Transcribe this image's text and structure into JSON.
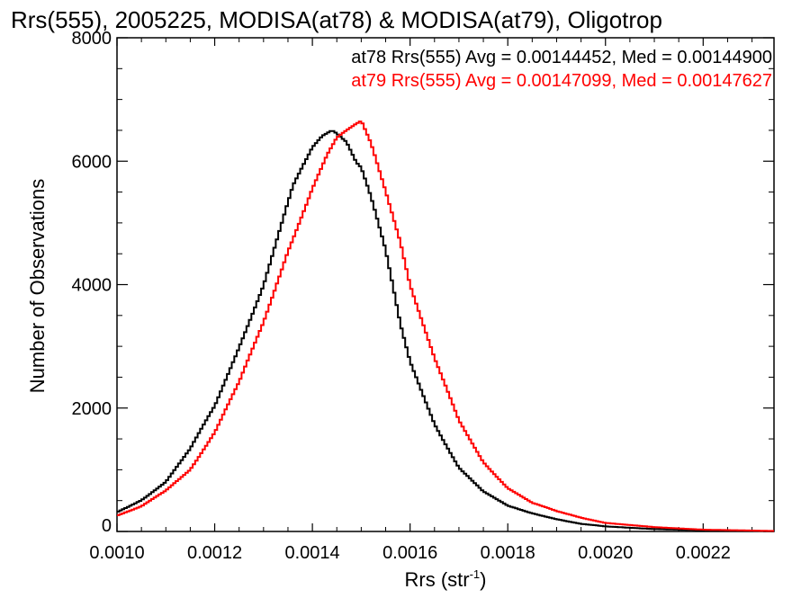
{
  "chart_data": {
    "type": "histogram",
    "title": "Rrs(555), 2005225, MODISA(at78) & MODISA(at79), Oligotrop",
    "xlabel": "Rrs (str",
    "xlabel_sup": "-1",
    "xlabel_close": ")",
    "ylabel": "Number of Observations",
    "xlim": [
      0.001,
      0.002345
    ],
    "ylim": [
      0,
      8000
    ],
    "x_ticks": [
      0.001,
      0.0012,
      0.0014,
      0.0016,
      0.0018,
      0.002,
      0.0022
    ],
    "x_tick_labels": [
      "0.0010",
      "0.0012",
      "0.0014",
      "0.0016",
      "0.0018",
      "0.0020",
      "0.0022"
    ],
    "y_ticks": [
      0,
      2000,
      4000,
      6000,
      8000
    ],
    "y_tick_labels": [
      "0",
      "2000",
      "4000",
      "6000",
      "8000"
    ],
    "legend_placement": "top-right",
    "series": [
      {
        "name": "at78 Rrs(555) Avg = 0.00144452, Med = 0.00144900",
        "color": "#000000",
        "x": [
          0.001,
          0.00105,
          0.0011,
          0.00115,
          0.0012,
          0.00125,
          0.0013,
          0.00133,
          0.00136,
          0.0014,
          0.00142,
          0.00144,
          0.00145,
          0.00147,
          0.00149,
          0.0015,
          0.00152,
          0.00155,
          0.00158,
          0.0016,
          0.00165,
          0.0017,
          0.00175,
          0.0018,
          0.00185,
          0.0019,
          0.00195,
          0.002,
          0.0021,
          0.0022,
          0.00234
        ],
        "y": [
          320,
          520,
          800,
          1300,
          2000,
          3000,
          4000,
          4800,
          5600,
          6250,
          6450,
          6550,
          6500,
          6350,
          6000,
          5900,
          5400,
          4500,
          3300,
          2700,
          1750,
          1050,
          650,
          420,
          300,
          200,
          120,
          80,
          40,
          20,
          5
        ]
      },
      {
        "name": "at79 Rrs(555) Avg = 0.00147099, Med = 0.00147627",
        "color": "#ff0000",
        "x": [
          0.001,
          0.00105,
          0.0011,
          0.00115,
          0.0012,
          0.00125,
          0.0013,
          0.00135,
          0.0014,
          0.00143,
          0.00145,
          0.00147,
          0.00149,
          0.0015,
          0.00152,
          0.00155,
          0.00158,
          0.0016,
          0.00165,
          0.0017,
          0.00175,
          0.0018,
          0.00185,
          0.0019,
          0.00195,
          0.002,
          0.0021,
          0.0022,
          0.00234
        ],
        "y": [
          260,
          400,
          650,
          1000,
          1600,
          2400,
          3400,
          4600,
          5600,
          6100,
          6350,
          6450,
          6550,
          6600,
          6250,
          5500,
          4700,
          4000,
          2800,
          1800,
          1150,
          720,
          460,
          320,
          220,
          140,
          70,
          30,
          8
        ]
      }
    ]
  }
}
